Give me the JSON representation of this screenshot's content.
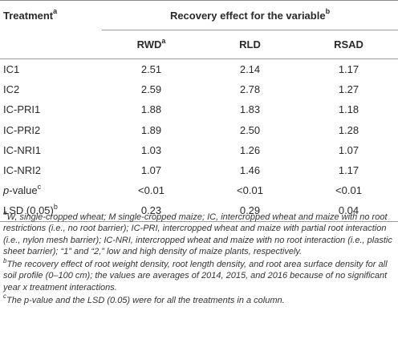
{
  "table": {
    "header": {
      "treatment": "Treatment",
      "treatment_sup": "a",
      "group": "Recovery effect for the variable",
      "group_sup": "b",
      "columns": [
        {
          "label": "RWD",
          "sup": "a"
        },
        {
          "label": "RLD",
          "sup": ""
        },
        {
          "label": "RSAD",
          "sup": ""
        }
      ]
    },
    "rows": [
      {
        "label": "IC1",
        "label_italic": "",
        "label_rest": "",
        "sup": "",
        "values": [
          "2.51",
          "2.14",
          "1.17"
        ]
      },
      {
        "label": "IC2",
        "label_italic": "",
        "label_rest": "",
        "sup": "",
        "values": [
          "2.59",
          "2.78",
          "1.27"
        ]
      },
      {
        "label": "IC-PRI1",
        "label_italic": "",
        "label_rest": "",
        "sup": "",
        "values": [
          "1.88",
          "1.83",
          "1.18"
        ]
      },
      {
        "label": "IC-PRI2",
        "label_italic": "",
        "label_rest": "",
        "sup": "",
        "values": [
          "1.89",
          "2.50",
          "1.28"
        ]
      },
      {
        "label": "IC-NRI1",
        "label_italic": "",
        "label_rest": "",
        "sup": "",
        "values": [
          "1.03",
          "1.26",
          "1.07"
        ]
      },
      {
        "label": "IC-NRI2",
        "label_italic": "",
        "label_rest": "",
        "sup": "",
        "values": [
          "1.07",
          "1.46",
          "1.17"
        ]
      },
      {
        "label": "",
        "label_italic": "p",
        "label_rest": "-value",
        "sup": "c",
        "values": [
          "<0.01",
          "<0.01",
          "<0.01"
        ]
      },
      {
        "label": "LSD (0.05)",
        "label_italic": "",
        "label_rest": "",
        "sup": "b",
        "values": [
          "0.23",
          "0.29",
          "0.04"
        ]
      }
    ]
  },
  "footnotes": [
    {
      "sup": "a",
      "text": "W, single-cropped wheat; M single-cropped maize; IC, intercropped wheat and maize with no root restrictions (i.e., no root barrier); IC-PRI, intercropped wheat and maize with partial root interaction (i.e., nylon mesh barrier); IC-NRI, intercropped wheat and maize with no root interaction (i.e., plastic sheet barrier); “1” and “2,” low and high density of maize plants, respectively."
    },
    {
      "sup": "b",
      "text": "The recovery effect of root weight density, root length density, and root area surface density for all soil profile (0–100 cm); the values are averages of 2014, 2015, and 2016 because of no significant year x treatment interactions."
    },
    {
      "sup": "c",
      "text": "The p-value and the LSD (0.05) were for all the treatments in a column."
    }
  ]
}
